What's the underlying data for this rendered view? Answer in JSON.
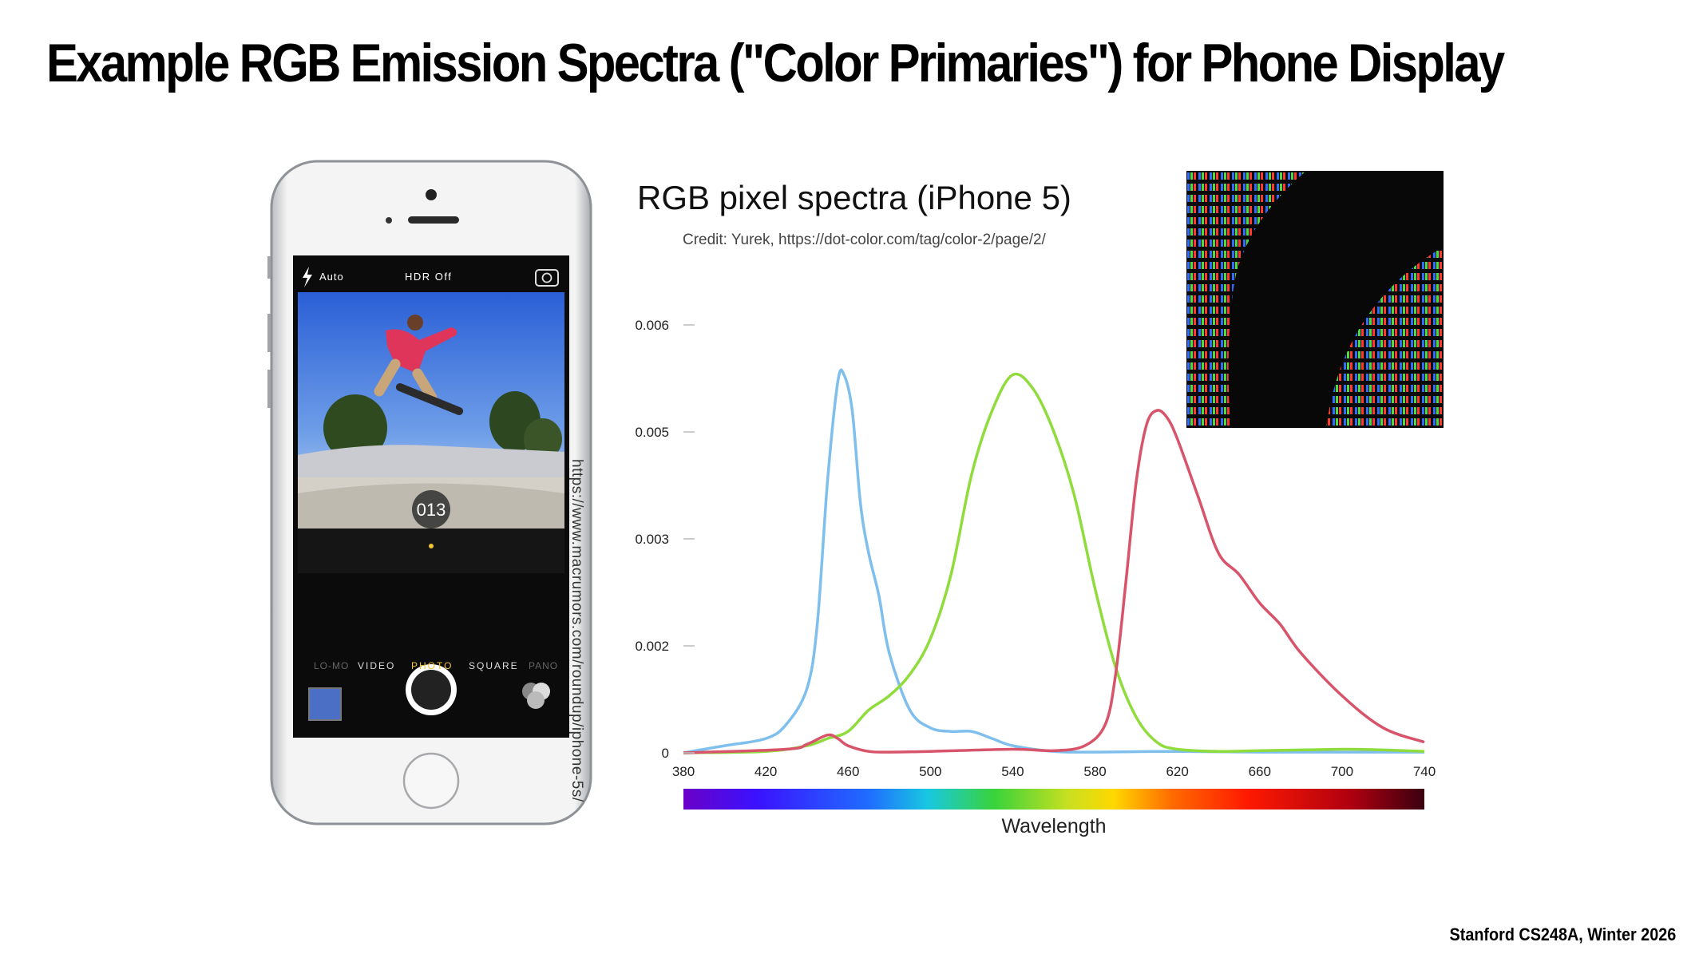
{
  "slide": {
    "title": "Example RGB Emission Spectra (\"Color Primaries\") for Phone Display",
    "footer": "Stanford CS248A, Winter 2026",
    "image_source_url": "https://www.macrumors.com/roundup/iphone-5s/"
  },
  "phone_screen": {
    "flash_label": "Auto",
    "hdr_label": "HDR Off",
    "counter": "013",
    "modes": [
      "LO-MO",
      "VIDEO",
      "PHOTO",
      "SQUARE",
      "PANO"
    ],
    "active_mode": "PHOTO"
  },
  "colors": {
    "blue_curve": "#7fbfee",
    "green_curve": "#8fdc3c",
    "red_curve": "#d7546a",
    "accent_yellow": "#f4c430"
  },
  "chart_data": {
    "type": "line",
    "title": "RGB pixel spectra (iPhone 5)",
    "subtitle": "Credit: Yurek, https://dot-color.com/tag/color-2/page/2/",
    "xlabel": "Wavelength",
    "ylabel": "",
    "xlim": [
      380,
      740
    ],
    "ylim": [
      0,
      0.006
    ],
    "x_ticks": [
      "380",
      "420",
      "460",
      "500",
      "540",
      "580",
      "620",
      "660",
      "700",
      "740"
    ],
    "y_ticks": [
      {
        "label": "0",
        "value": 0
      },
      {
        "label": "0.002",
        "value": 0.0015
      },
      {
        "label": "0.003",
        "value": 0.003
      },
      {
        "label": "0.005",
        "value": 0.0045
      },
      {
        "label": "0.006",
        "value": 0.006
      }
    ],
    "grid": false,
    "spectrum_bar": true,
    "series": [
      {
        "color": "#7fbfee",
        "x": [
          380,
          400,
          420,
          430,
          440,
          445,
          450,
          455,
          458,
          462,
          466,
          470,
          475,
          480,
          490,
          500,
          510,
          520,
          530,
          540,
          560,
          580,
          620,
          660,
          700,
          740
        ],
        "y": [
          0,
          0.0001,
          0.0002,
          0.0004,
          0.0009,
          0.0018,
          0.0038,
          0.0052,
          0.0053,
          0.0048,
          0.0035,
          0.0028,
          0.0022,
          0.0014,
          0.0006,
          0.00035,
          0.0003,
          0.0003,
          0.0002,
          0.0001,
          2e-05,
          1e-05,
          2e-05,
          1e-05,
          1e-05,
          1e-05
        ]
      },
      {
        "color": "#8fdc3c",
        "x": [
          380,
          420,
          440,
          450,
          460,
          470,
          480,
          490,
          500,
          510,
          520,
          530,
          540,
          550,
          560,
          570,
          580,
          590,
          600,
          610,
          620,
          640,
          660,
          700,
          720,
          740
        ],
        "y": [
          0,
          2e-05,
          0.0001,
          0.0002,
          0.0003,
          0.0006,
          0.0008,
          0.0011,
          0.0016,
          0.0025,
          0.0039,
          0.0048,
          0.0053,
          0.0051,
          0.0045,
          0.0036,
          0.0023,
          0.0012,
          0.0005,
          0.00015,
          5e-05,
          2e-05,
          3e-05,
          5e-05,
          4e-05,
          2e-05
        ]
      },
      {
        "color": "#d7546a",
        "x": [
          380,
          430,
          440,
          450,
          455,
          460,
          470,
          480,
          500,
          540,
          560,
          575,
          585,
          590,
          595,
          600,
          605,
          610,
          615,
          620,
          630,
          640,
          650,
          660,
          670,
          680,
          700,
          720,
          740
        ],
        "y": [
          0,
          5e-05,
          0.00012,
          0.00025,
          0.0002,
          0.0001,
          2e-05,
          1e-05,
          2e-05,
          5e-05,
          3e-05,
          0.0001,
          0.0004,
          0.0011,
          0.0024,
          0.0038,
          0.0046,
          0.0048,
          0.0047,
          0.0044,
          0.0036,
          0.0028,
          0.0025,
          0.0021,
          0.0018,
          0.0014,
          0.0008,
          0.00035,
          0.00015
        ]
      }
    ]
  }
}
